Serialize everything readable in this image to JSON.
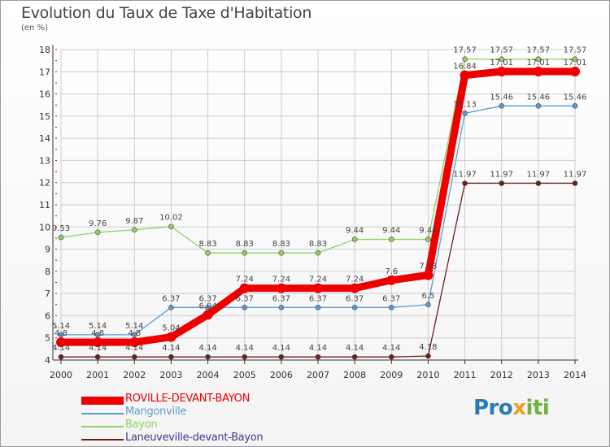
{
  "title": "Evolution du Taux de Taxe d'Habitation",
  "subtitle": "(en %)",
  "logo": {
    "part1": "Pro",
    "part2": "x",
    "part3": "iti"
  },
  "colors": {
    "roville": "#ee0000",
    "mangonville": "#5b9bd5",
    "bayon": "#8ed35e",
    "laneuveville": "#6b1f1f",
    "grid": "#cccccc",
    "axis_red": "#cc0000"
  },
  "chart_data": {
    "type": "line",
    "title": "Evolution du Taux de Taxe d'Habitation",
    "ylabel": "(en %)",
    "x": [
      "2000",
      "2001",
      "2002",
      "2003",
      "2004",
      "2005",
      "2006",
      "2007",
      "2008",
      "2009",
      "2010",
      "2011",
      "2012",
      "2013",
      "2014"
    ],
    "y_ticks": [
      "4",
      "5",
      "6",
      "7",
      "8",
      "9",
      "10",
      "11",
      "12",
      "13",
      "14",
      "15",
      "16",
      "17",
      "18"
    ],
    "ylim": [
      4,
      18
    ],
    "grid": true,
    "legend_position": "bottom-left",
    "series": [
      {
        "name": "ROVILLE-DEVANT-BAYON",
        "color": "#ee0000",
        "values": [
          4.8,
          4.8,
          4.8,
          5.04,
          6.04,
          7.24,
          7.24,
          7.24,
          7.24,
          7.6,
          7.83,
          16.84,
          17.01,
          17.01,
          17.01
        ],
        "labels": [
          "4.8",
          "4.8",
          "4.8",
          "5.04",
          "6.04",
          "7.24",
          "7.24",
          "7.24",
          "7.24",
          "7.6",
          "7.83",
          "16.84",
          "17.01",
          "17.01",
          "17.01"
        ]
      },
      {
        "name": "Mangonville",
        "color": "#5b9bd5",
        "values": [
          5.14,
          5.14,
          5.14,
          6.37,
          6.37,
          6.37,
          6.37,
          6.37,
          6.37,
          6.37,
          6.5,
          15.13,
          15.46,
          15.46,
          15.46
        ],
        "labels": [
          "5.14",
          "5.14",
          "5.14",
          "6.37",
          "6.37",
          "6.37",
          "6.37",
          "6.37",
          "6.37",
          "6.37",
          "6.5",
          "15.13",
          "15.46",
          "15.46",
          "15.46"
        ]
      },
      {
        "name": "Bayon",
        "color": "#8ed35e",
        "values": [
          9.53,
          9.76,
          9.87,
          10.02,
          8.83,
          8.83,
          8.83,
          8.83,
          9.44,
          9.44,
          9.44,
          17.57,
          17.57,
          17.57,
          17.57
        ],
        "labels": [
          "9.53",
          "9.76",
          "9.87",
          "10.02",
          "8.83",
          "8.83",
          "8.83",
          "8.83",
          "9.44",
          "9.44",
          "9.44",
          "17.57",
          "17.57",
          "17.57",
          "17.57"
        ]
      },
      {
        "name": "Laneuveville-devant-Bayon",
        "color": "#6b1f1f",
        "values": [
          4.14,
          4.14,
          4.14,
          4.14,
          4.14,
          4.14,
          4.14,
          4.14,
          4.14,
          4.14,
          4.18,
          11.97,
          11.97,
          11.97,
          11.97
        ],
        "labels": [
          "4.14",
          "4.14",
          "4.14",
          "4.14",
          "4.14",
          "4.14",
          "4.14",
          "4.14",
          "4.14",
          "4.14",
          "4.18",
          "11.97",
          "11.97",
          "11.97",
          "11.97"
        ]
      }
    ]
  },
  "legend": [
    {
      "name": "ROVILLE-DEVANT-BAYON",
      "color": "#ee0000",
      "style": "thick"
    },
    {
      "name": "Mangonville",
      "color": "#5b9bd5",
      "style": "thin"
    },
    {
      "name": "Bayon",
      "color": "#8ed35e",
      "style": "thin"
    },
    {
      "name": "Laneuveville-devant-Bayon",
      "color": "#6b1f1f",
      "style": "thin"
    }
  ]
}
